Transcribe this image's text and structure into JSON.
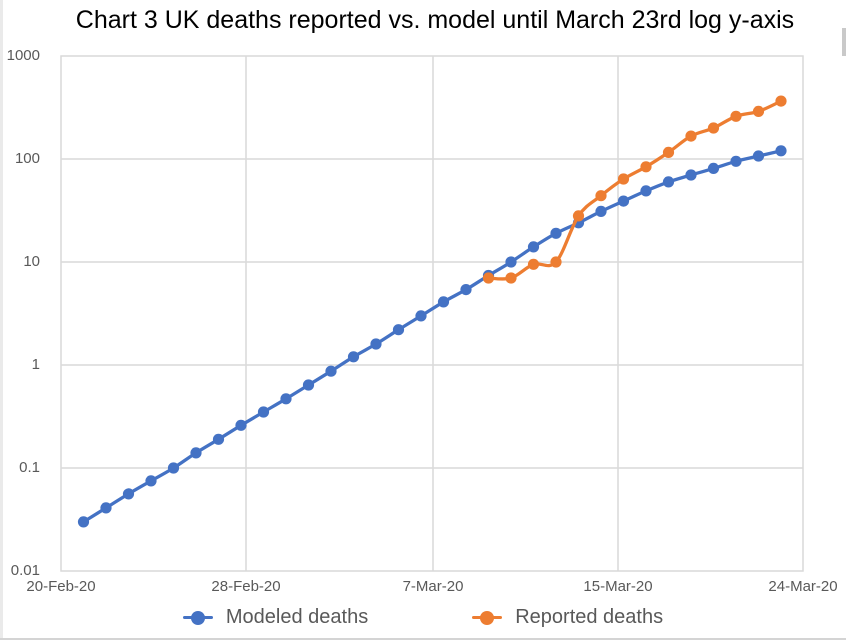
{
  "chart_data": {
    "type": "line",
    "title": "Chart 3 UK deaths reported vs. model until March 23rd log y-axis",
    "grid": true,
    "legend_position": "bottom",
    "y_axis": {
      "scale": "log",
      "min": 0.01,
      "max": 1000,
      "ticks": [
        1000,
        100,
        10,
        1,
        0.1,
        0.01
      ]
    },
    "x_axis": {
      "unit": "day",
      "start": "20-Feb-20",
      "end": "24-Mar-20",
      "tick_labels": [
        "20-Feb-20",
        "28-Feb-20",
        "7-Mar-20",
        "15-Mar-20",
        "24-Mar-20"
      ]
    },
    "series": [
      {
        "name": "Modeled deaths",
        "color": "#4472C4",
        "marker": "circle",
        "line": "smooth",
        "dates": [
          "21-Feb-20",
          "22-Feb-20",
          "23-Feb-20",
          "24-Feb-20",
          "25-Feb-20",
          "26-Feb-20",
          "27-Feb-20",
          "28-Feb-20",
          "29-Feb-20",
          "1-Mar-20",
          "2-Mar-20",
          "3-Mar-20",
          "4-Mar-20",
          "5-Mar-20",
          "6-Mar-20",
          "7-Mar-20",
          "8-Mar-20",
          "9-Mar-20",
          "10-Mar-20",
          "11-Mar-20",
          "12-Mar-20",
          "13-Mar-20",
          "14-Mar-20",
          "15-Mar-20",
          "16-Mar-20",
          "17-Mar-20",
          "18-Mar-20",
          "19-Mar-20",
          "20-Mar-20",
          "21-Mar-20",
          "22-Mar-20",
          "23-Mar-20"
        ],
        "values": [
          0.03,
          0.041,
          0.056,
          0.075,
          0.1,
          0.14,
          0.19,
          0.26,
          0.35,
          0.47,
          0.64,
          0.87,
          1.2,
          1.6,
          2.2,
          3.0,
          4.1,
          5.4,
          7.4,
          10,
          14,
          19,
          24,
          31,
          39,
          49,
          60,
          70,
          81,
          95,
          107,
          120
        ]
      },
      {
        "name": "Reported deaths",
        "color": "#ED7D31",
        "marker": "circle",
        "line": "smooth",
        "dates": [
          "10-Mar-20",
          "11-Mar-20",
          "12-Mar-20",
          "13-Mar-20",
          "14-Mar-20",
          "15-Mar-20",
          "16-Mar-20",
          "17-Mar-20",
          "18-Mar-20",
          "19-Mar-20",
          "20-Mar-20",
          "21-Mar-20",
          "22-Mar-20",
          "23-Mar-20"
        ],
        "values": [
          7,
          7,
          9.5,
          10,
          28,
          44,
          64,
          84,
          116,
          167,
          200,
          260,
          290,
          365
        ]
      }
    ]
  }
}
